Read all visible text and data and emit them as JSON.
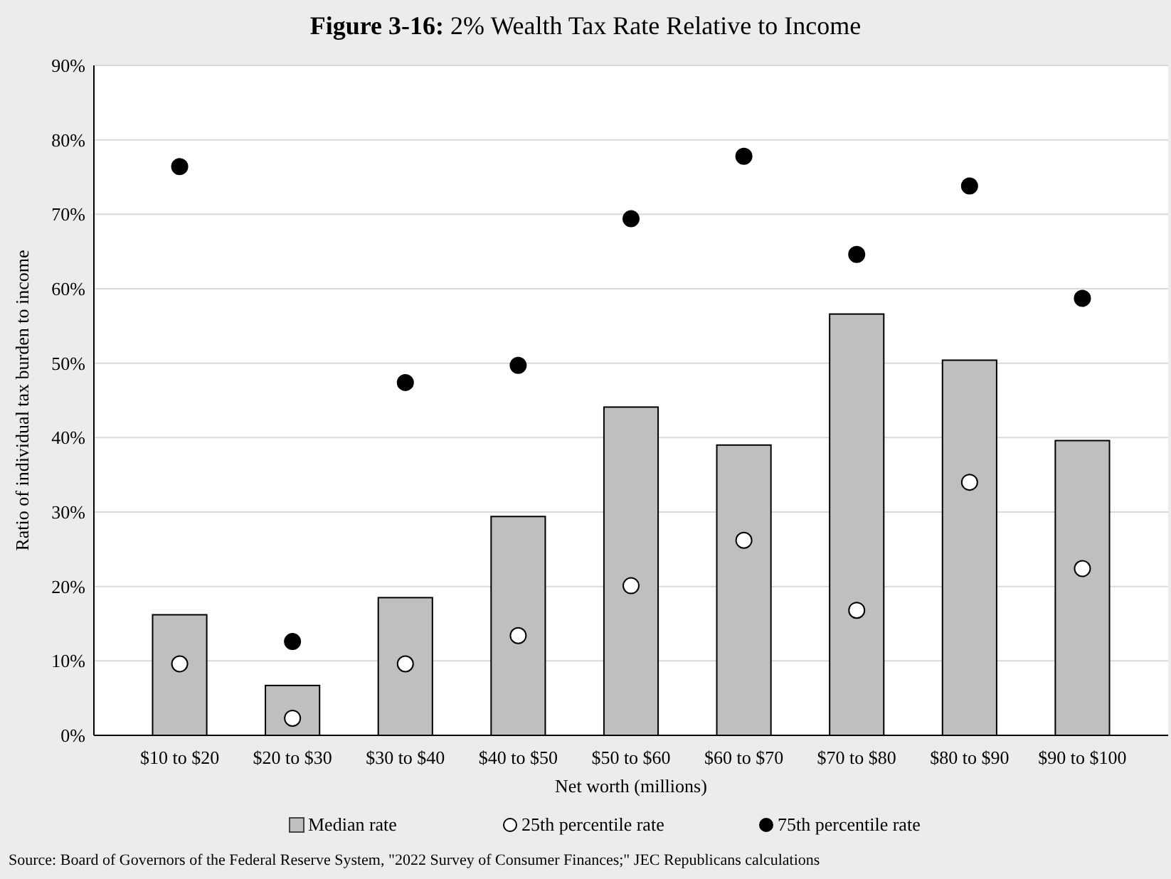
{
  "chart_data": {
    "type": "bar",
    "title": "Figure 3-16: 2% Wealth Tax Rate Relative to Income",
    "xlabel": "Net worth (millions)",
    "ylabel": "Ratio of individual tax burden to income",
    "categories": [
      "$10 to $20",
      "$20 to $30",
      "$30 to $40",
      "$40 to $50",
      "$50 to $60",
      "$60 to $70",
      "$70 to $80",
      "$80 to $90",
      "$90 to $100"
    ],
    "series": [
      {
        "name": "Median rate",
        "color": "#bfbfbf",
        "values": [
          16.2,
          6.7,
          18.5,
          29.4,
          44.1,
          39,
          56.6,
          50.4,
          39.6
        ]
      },
      {
        "name": "25th percentile rate",
        "type": "scatter",
        "color": "#ffffff",
        "x": [
          "$10 to $20",
          "$20 to $30",
          "$30 to $40",
          "$40 to $50",
          "$50 to $60",
          "$60 to $70",
          "$70 to $80",
          "$80 to $90",
          "$90 to $100"
        ],
        "values": [
          9.6,
          2.3,
          9.6,
          13.4,
          20.1,
          26.2,
          16.8,
          34,
          22.4
        ]
      },
      {
        "name": "75th percentile rate",
        "type": "scatter",
        "color": "#000000",
        "x": [
          "$10 to $20",
          "$20 to $30",
          "$30 to $40",
          "$40 to $50",
          "$50 to $60",
          "$60 to $70",
          "$70 to $80",
          "$80 to $90",
          "$90 to $100"
        ],
        "values": [
          76.4,
          12.6,
          47.4,
          49.7,
          69.4,
          77.8,
          64.6,
          73.8,
          58.7
        ]
      }
    ],
    "ylim": [
      0,
      90
    ],
    "yticks": [
      {
        "value": 0,
        "label": "0%"
      },
      {
        "value": 10,
        "label": "10%"
      },
      {
        "value": 20,
        "label": "20%"
      },
      {
        "value": 30,
        "label": "30%"
      },
      {
        "value": 40,
        "label": "40%"
      },
      {
        "value": 50,
        "label": "50%"
      },
      {
        "value": 60,
        "label": "60%"
      },
      {
        "value": 70,
        "label": "70%"
      },
      {
        "value": 80,
        "label": "80%"
      },
      {
        "value": 90,
        "label": "90%"
      }
    ],
    "grid": "y",
    "legend": "bottom",
    "marker": "circle",
    "annotations": [
      "Source: Board of Governors of the Federal Reserve System, \"2022 Survey of Consumer Finances;\" JEC Republicans calculations"
    ]
  }
}
